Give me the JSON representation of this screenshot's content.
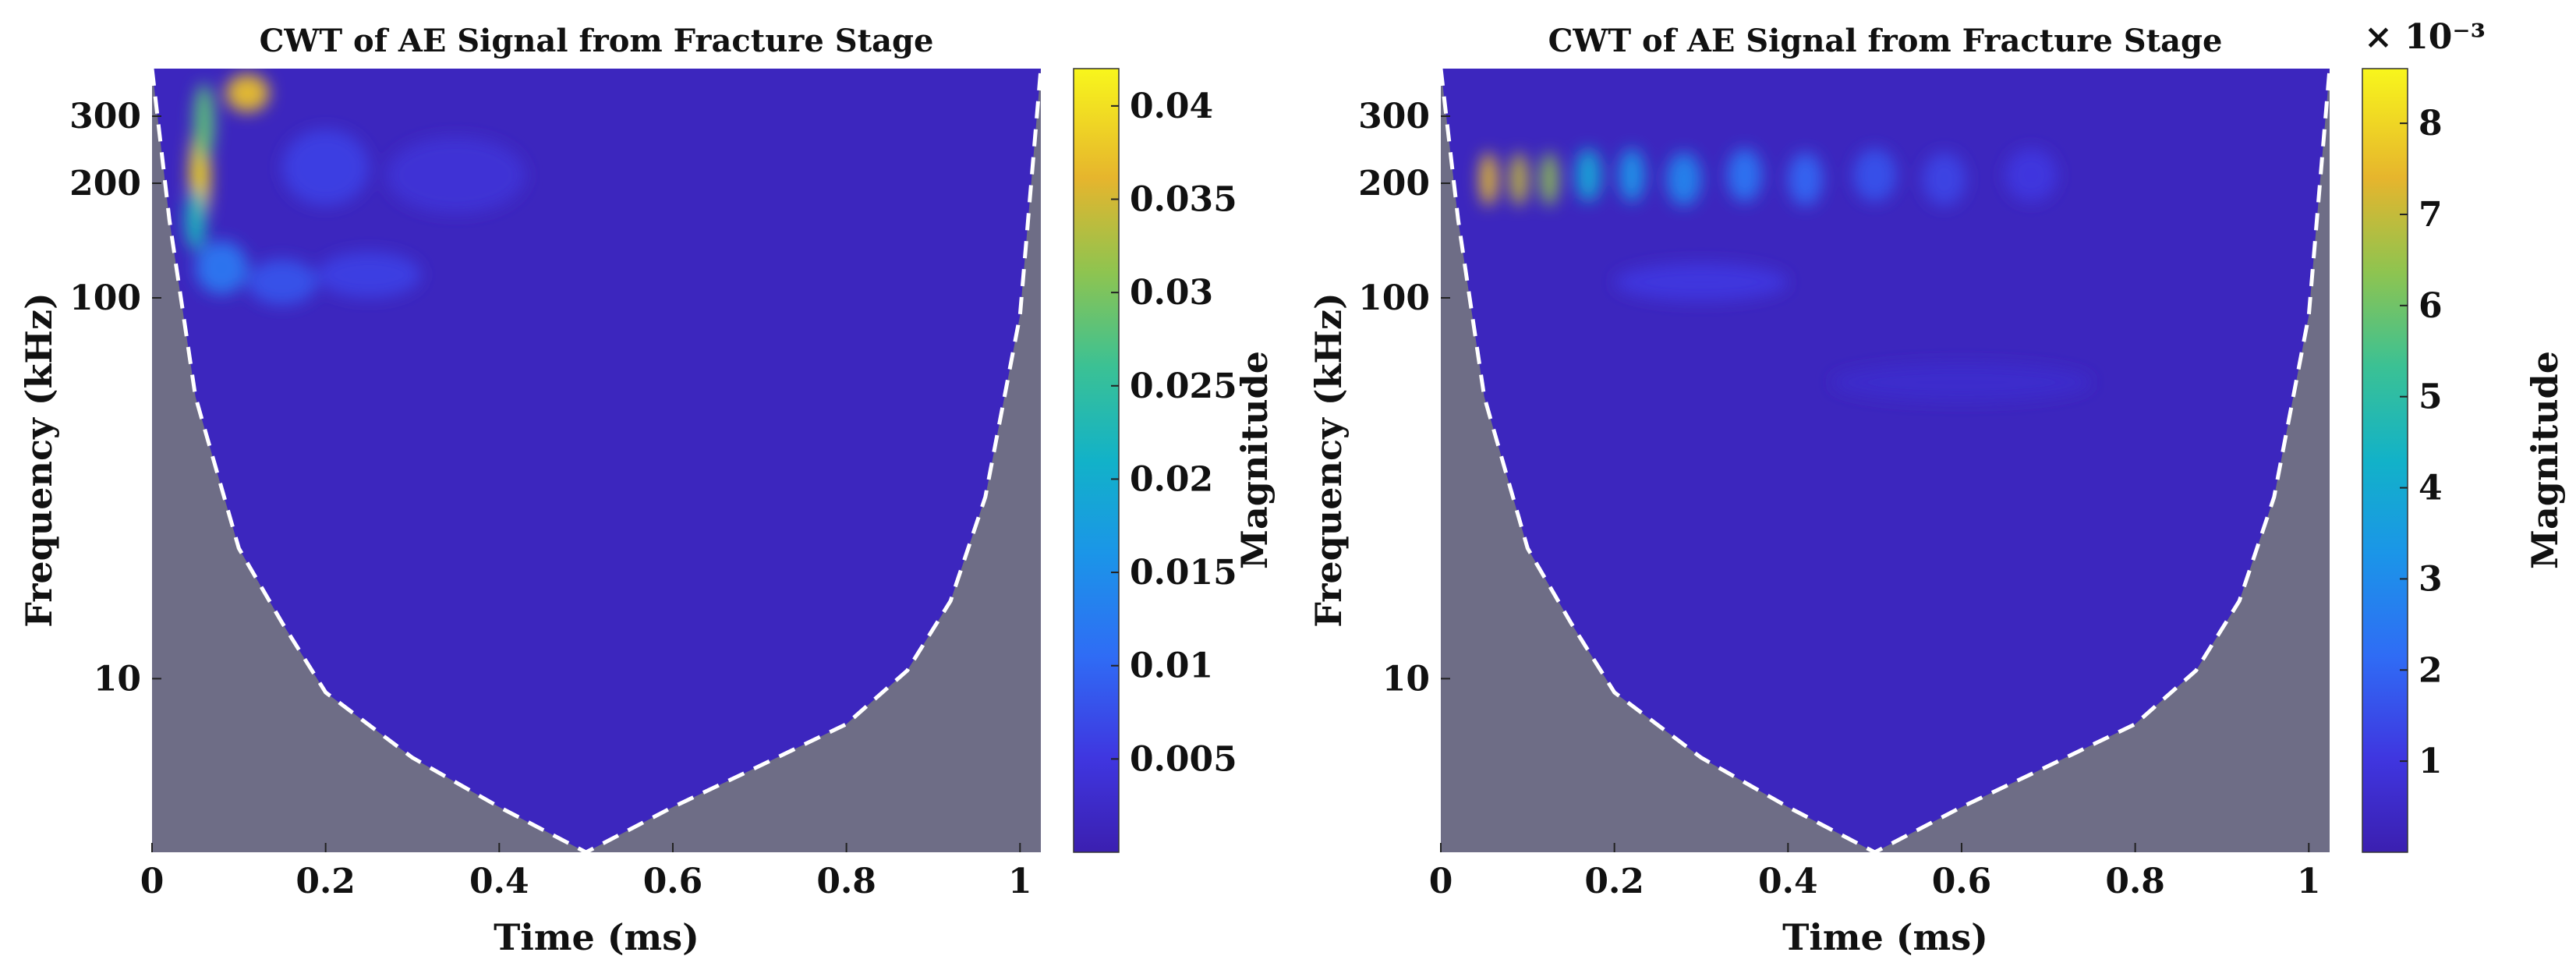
{
  "chart_data": [
    {
      "type": "heatmap",
      "title": "CWT of AE Signal from Fracture Stage",
      "xlabel": "Time (ms)",
      "ylabel": "Frequency (kHz)",
      "xlim": [
        0,
        1.024
      ],
      "ylim": [
        3.5,
        400
      ],
      "yscale": "log",
      "x_ticks": [
        0,
        0.2,
        0.4,
        0.6,
        0.8,
        1
      ],
      "x_tick_labels": [
        "0",
        "0.2",
        "0.4",
        "0.6",
        "0.8",
        "1"
      ],
      "y_ticks": [
        10,
        100,
        200,
        300
      ],
      "y_tick_labels": [
        "10",
        "100",
        "200",
        "300"
      ],
      "colorbar": {
        "label": "Magnitude",
        "range": [
          0,
          0.042
        ],
        "ticks": [
          0.005,
          0.01,
          0.015,
          0.02,
          0.025,
          0.03,
          0.035,
          0.04
        ],
        "tick_labels": [
          "0.005",
          "0.01",
          "0.015",
          "0.02",
          "0.025",
          "0.03",
          "0.035",
          "0.04"
        ],
        "exponent_label": ""
      },
      "cone_of_influence": {
        "color": "#6e6d86",
        "line_style": "dashed-white",
        "points": [
          [
            0,
            400
          ],
          [
            0.02,
            160
          ],
          [
            0.05,
            55
          ],
          [
            0.1,
            22
          ],
          [
            0.15,
            14
          ],
          [
            0.2,
            9.2
          ],
          [
            0.3,
            6.2
          ],
          [
            0.4,
            4.6
          ],
          [
            0.5,
            3.5
          ],
          [
            0.6,
            4.6
          ],
          [
            0.7,
            5.9
          ],
          [
            0.8,
            7.6
          ],
          [
            0.87,
            10.5
          ],
          [
            0.92,
            16
          ],
          [
            0.96,
            30
          ],
          [
            1.0,
            90
          ],
          [
            1.024,
            400
          ]
        ]
      },
      "hotspots": [
        {
          "t": 0.055,
          "f": 210,
          "mag": 0.039,
          "dt": 0.012,
          "df": 0.13
        },
        {
          "t": 0.06,
          "f": 290,
          "mag": 0.028,
          "dt": 0.012,
          "df": 0.1
        },
        {
          "t": 0.11,
          "f": 345,
          "mag": 0.037,
          "dt": 0.025,
          "df": 0.05
        },
        {
          "t": 0.05,
          "f": 160,
          "mag": 0.022,
          "dt": 0.012,
          "df": 0.08
        },
        {
          "t": 0.08,
          "f": 120,
          "mag": 0.012,
          "dt": 0.03,
          "df": 0.07
        },
        {
          "t": 0.15,
          "f": 110,
          "mag": 0.008,
          "dt": 0.04,
          "df": 0.06
        },
        {
          "t": 0.25,
          "f": 115,
          "mag": 0.006,
          "dt": 0.06,
          "df": 0.06
        },
        {
          "t": 0.2,
          "f": 220,
          "mag": 0.006,
          "dt": 0.05,
          "df": 0.1
        },
        {
          "t": 0.35,
          "f": 210,
          "mag": 0.004,
          "dt": 0.08,
          "df": 0.1
        }
      ]
    },
    {
      "type": "heatmap",
      "title": "CWT of AE Signal from Fracture Stage",
      "xlabel": "Time (ms)",
      "ylabel": "Frequency (kHz)",
      "xlim": [
        0,
        1.024
      ],
      "ylim": [
        3.5,
        400
      ],
      "yscale": "log",
      "x_ticks": [
        0,
        0.2,
        0.4,
        0.6,
        0.8,
        1
      ],
      "x_tick_labels": [
        "0",
        "0.2",
        "0.4",
        "0.6",
        "0.8",
        "1"
      ],
      "y_ticks": [
        10,
        100,
        200,
        300
      ],
      "y_tick_labels": [
        "10",
        "100",
        "200",
        "300"
      ],
      "colorbar": {
        "label": "Magnitude",
        "range": [
          0,
          8.6
        ],
        "ticks": [
          1,
          2,
          3,
          4,
          5,
          6,
          7,
          8
        ],
        "tick_labels": [
          "1",
          "2",
          "3",
          "4",
          "5",
          "6",
          "7",
          "8"
        ],
        "exponent_label": "× 10⁻³"
      },
      "cone_of_influence": {
        "color": "#6e6d86",
        "line_style": "dashed-white",
        "points": [
          [
            0,
            400
          ],
          [
            0.02,
            160
          ],
          [
            0.05,
            55
          ],
          [
            0.1,
            22
          ],
          [
            0.15,
            14
          ],
          [
            0.2,
            9.2
          ],
          [
            0.3,
            6.2
          ],
          [
            0.4,
            4.6
          ],
          [
            0.5,
            3.5
          ],
          [
            0.6,
            4.6
          ],
          [
            0.7,
            5.9
          ],
          [
            0.8,
            7.6
          ],
          [
            0.87,
            10.5
          ],
          [
            0.92,
            16
          ],
          [
            0.96,
            30
          ],
          [
            1.0,
            90
          ],
          [
            1.024,
            400
          ]
        ]
      },
      "hotspots": [
        {
          "t": 0.055,
          "f": 205,
          "mag": 7.6,
          "dt": 0.01,
          "df": 0.07
        },
        {
          "t": 0.09,
          "f": 205,
          "mag": 7.0,
          "dt": 0.01,
          "df": 0.07
        },
        {
          "t": 0.125,
          "f": 205,
          "mag": 6.4,
          "dt": 0.01,
          "df": 0.07
        },
        {
          "t": 0.17,
          "f": 210,
          "mag": 3.8,
          "dt": 0.015,
          "df": 0.07
        },
        {
          "t": 0.22,
          "f": 210,
          "mag": 3.2,
          "dt": 0.015,
          "df": 0.07
        },
        {
          "t": 0.28,
          "f": 205,
          "mag": 2.8,
          "dt": 0.02,
          "df": 0.07
        },
        {
          "t": 0.35,
          "f": 210,
          "mag": 2.4,
          "dt": 0.02,
          "df": 0.07
        },
        {
          "t": 0.42,
          "f": 205,
          "mag": 2.0,
          "dt": 0.02,
          "df": 0.07
        },
        {
          "t": 0.5,
          "f": 210,
          "mag": 1.6,
          "dt": 0.025,
          "df": 0.07
        },
        {
          "t": 0.58,
          "f": 205,
          "mag": 1.3,
          "dt": 0.025,
          "df": 0.07
        },
        {
          "t": 0.68,
          "f": 210,
          "mag": 1.0,
          "dt": 0.03,
          "df": 0.07
        },
        {
          "t": 0.3,
          "f": 110,
          "mag": 1.0,
          "dt": 0.1,
          "df": 0.05
        },
        {
          "t": 0.6,
          "f": 60,
          "mag": 0.6,
          "dt": 0.15,
          "df": 0.05
        }
      ]
    }
  ]
}
